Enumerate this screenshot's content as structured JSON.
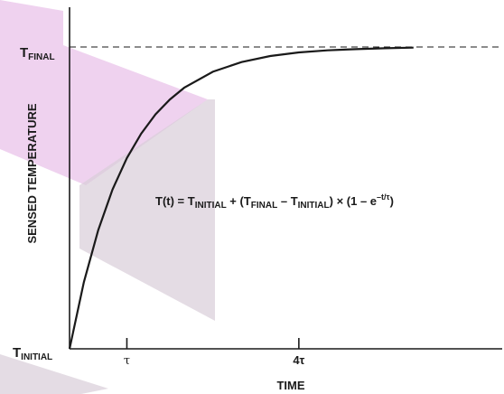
{
  "chart_data": {
    "type": "line",
    "title": "",
    "xlabel": "TIME",
    "ylabel": "SENSED TEMPERATURE",
    "x_unit": "τ",
    "xlim": [
      0,
      7.5
    ],
    "ylim": [
      0,
      1
    ],
    "x_ticks": [
      {
        "value": 1,
        "label": "τ"
      },
      {
        "value": 4,
        "label": "4τ"
      }
    ],
    "y_ticks": [
      {
        "value": 0,
        "base": "T",
        "sub": "INITIAL"
      },
      {
        "value": 1,
        "base": "T",
        "sub": "FINAL"
      }
    ],
    "reference_lines": [
      {
        "axis": "y",
        "value": 1,
        "style": "dashed",
        "label": "T_FINAL"
      }
    ],
    "series": [
      {
        "name": "",
        "color": "#1a1a1a",
        "x": [
          0,
          0.25,
          0.5,
          0.75,
          1,
          1.25,
          1.5,
          1.75,
          2,
          2.5,
          3,
          3.5,
          4,
          4.5,
          5,
          5.5,
          6
        ],
        "y": [
          0,
          0.221,
          0.393,
          0.528,
          0.632,
          0.713,
          0.777,
          0.826,
          0.865,
          0.918,
          0.95,
          0.97,
          0.982,
          0.989,
          0.993,
          0.996,
          0.998
        ]
      }
    ],
    "equation": {
      "lhs": "T(t) = T",
      "sub1": "INITIAL",
      "p2": " + (T",
      "sub2": "FINAL",
      "p3": " – T",
      "sub3": "INITIAL",
      "p4": ") × (1 – e",
      "sup": "–t/τ",
      "p5": ")"
    },
    "grid": false,
    "legend": "none"
  },
  "decor": {
    "background_shapes_color": "#e9c3ea",
    "shadow_color": "#d9cdd9"
  }
}
